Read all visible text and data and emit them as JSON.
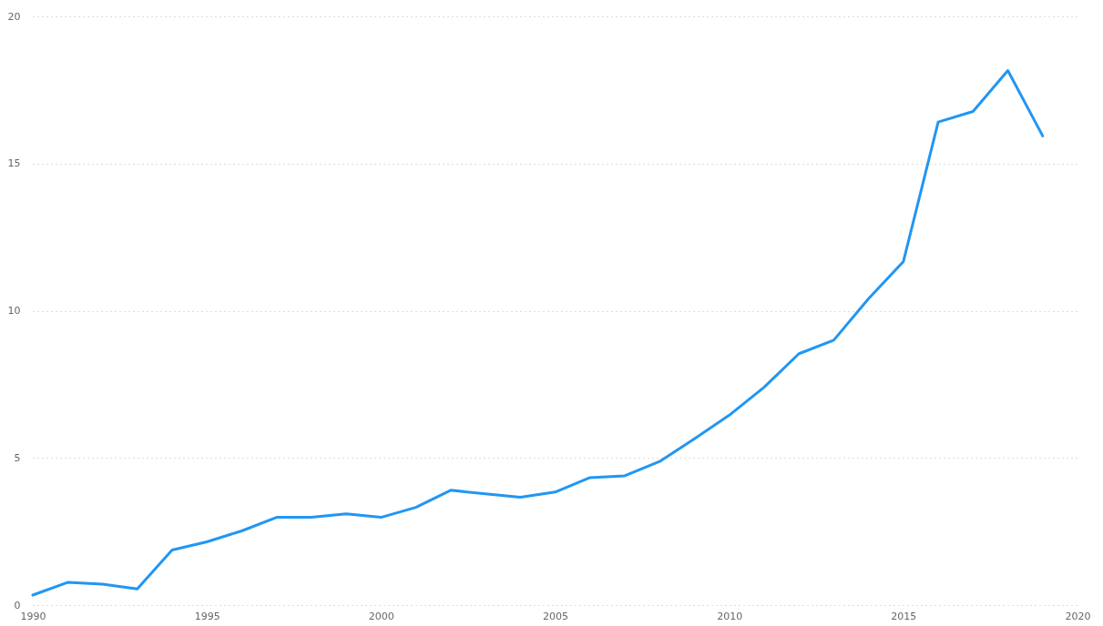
{
  "chart_data": {
    "type": "line",
    "x": [
      1990,
      1991,
      1992,
      1993,
      1994,
      1995,
      1996,
      1997,
      1998,
      1999,
      2000,
      2001,
      2002,
      2003,
      2004,
      2005,
      2006,
      2007,
      2008,
      2009,
      2010,
      2011,
      2012,
      2013,
      2014,
      2015,
      2016,
      2017,
      2018,
      2019
    ],
    "series": [
      {
        "color": "#2196f3",
        "values": [
          0.34,
          0.77,
          0.71,
          0.55,
          1.87,
          2.15,
          2.52,
          2.98,
          2.98,
          3.1,
          2.98,
          3.32,
          3.9,
          3.78,
          3.66,
          3.84,
          4.33,
          4.39,
          4.88,
          5.65,
          6.45,
          7.4,
          8.54,
          9.0,
          10.41,
          11.67,
          16.41,
          16.77,
          18.16,
          15.94
        ]
      }
    ],
    "xlim": [
      1990,
      2020
    ],
    "xticks": [
      1990,
      1995,
      2000,
      2005,
      2010,
      2015,
      2020
    ],
    "ylim": [
      0,
      20
    ],
    "yticks": [
      0,
      5,
      10,
      15,
      20
    ],
    "grid": "y",
    "line_style": "solid"
  }
}
